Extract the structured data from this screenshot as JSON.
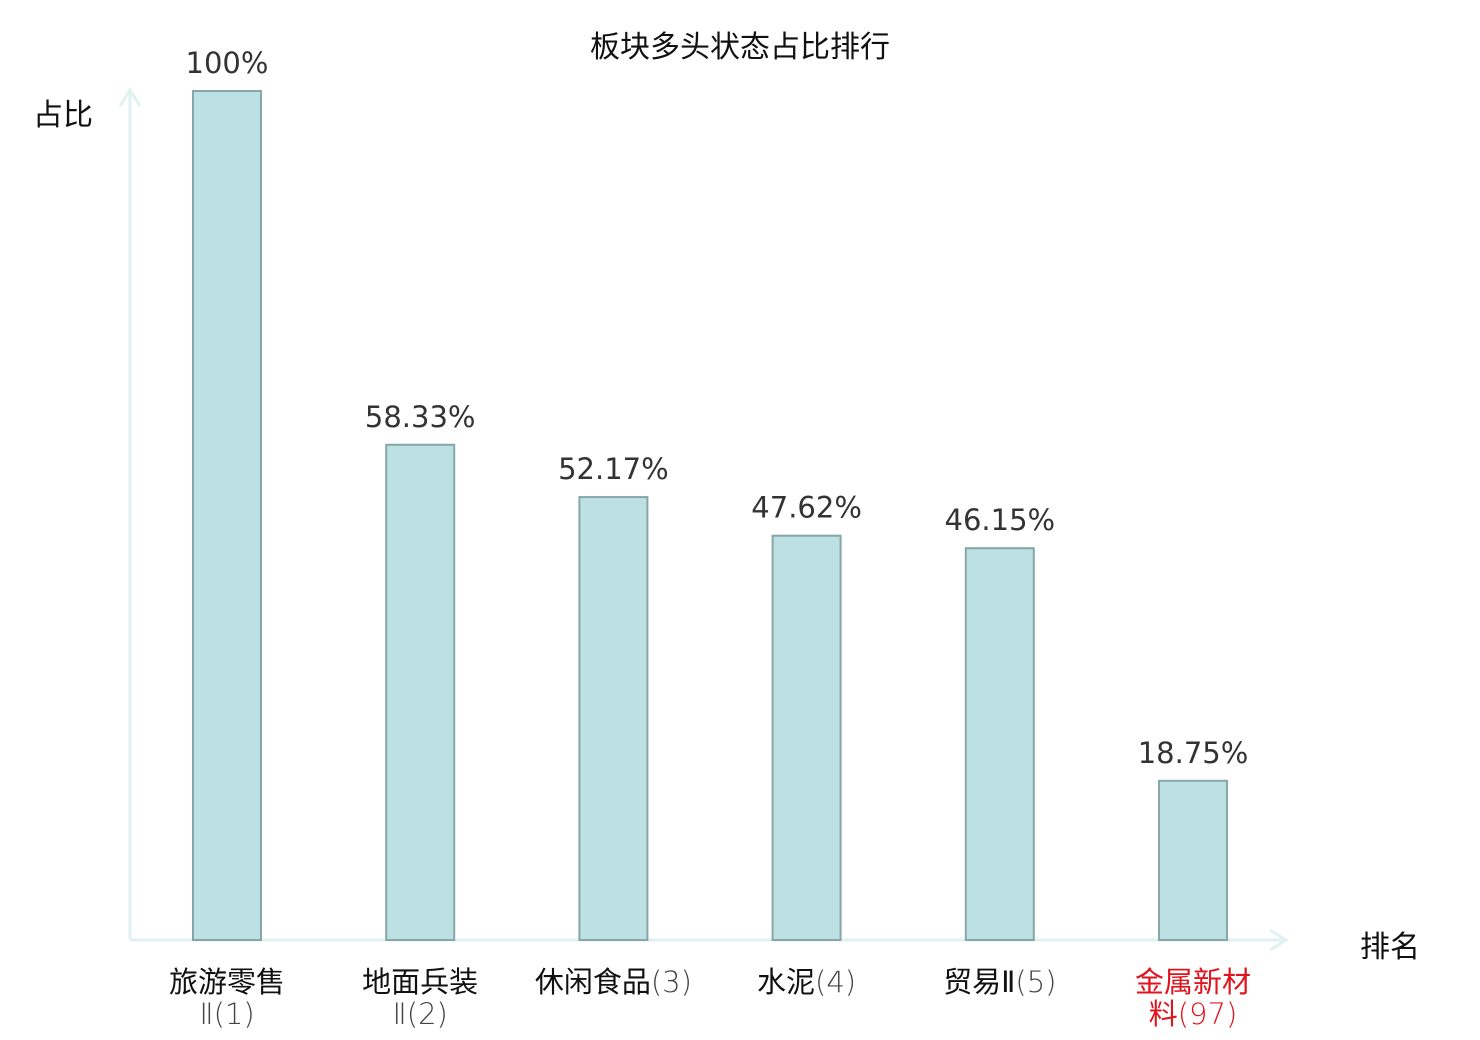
{
  "chart_data": {
    "type": "bar",
    "title": "板块多头状态占比排行",
    "ylabel": "占比",
    "xlabel": "排名",
    "categories": [
      {
        "name": "旅游零售II",
        "line1": "旅游零售",
        "line2": "Ⅱ(1)"
      },
      {
        "name": "地面兵装II",
        "line1": "地面兵装",
        "line2": "Ⅱ(2)"
      },
      {
        "name": "休闲食品",
        "line1": "休闲食品(3)",
        "line2": ""
      },
      {
        "name": "水泥",
        "line1": "水泥(4)",
        "line2": ""
      },
      {
        "name": "贸易II",
        "line1": "贸易Ⅱ(5)",
        "line2": ""
      },
      {
        "name": "金属新材料",
        "line1": "金属新材",
        "line2": "料(97)"
      }
    ],
    "values": [
      100,
      58.33,
      52.17,
      47.62,
      46.15,
      18.75
    ],
    "value_labels": [
      "100%",
      "58.33%",
      "52.17%",
      "47.62%",
      "46.15%",
      "18.75%"
    ],
    "highlight_index": 5,
    "ylim": [
      0,
      100
    ],
    "grid": false,
    "colors": {
      "bar_fill": "#bde0e3",
      "bar_stroke": "#86a6aa",
      "axis": "#dff2ef",
      "highlight_text": "#e0141e"
    }
  }
}
